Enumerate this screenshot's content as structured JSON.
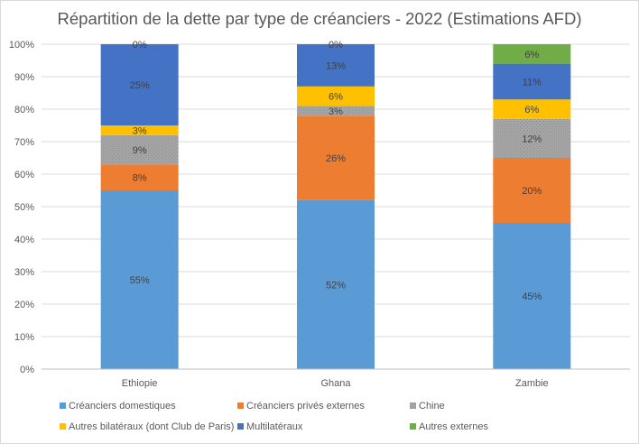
{
  "chart_data": {
    "type": "bar",
    "stacked": true,
    "title": "Répartition de la dette par type de créanciers - 2022 (Estimations AFD)",
    "xlabel": "",
    "ylabel": "",
    "ylim": [
      0,
      100
    ],
    "yticks": [
      "0%",
      "10%",
      "20%",
      "30%",
      "40%",
      "50%",
      "60%",
      "70%",
      "80%",
      "90%",
      "100%"
    ],
    "grid": true,
    "legend_position": "bottom",
    "categories": [
      "Ethiopie",
      "Ghana",
      "Zambie"
    ],
    "series": [
      {
        "name": "Créanciers domestiques",
        "color": "#5b9bd5",
        "values": [
          55,
          52,
          45
        ],
        "labels": [
          "55%",
          "52%",
          "45%"
        ]
      },
      {
        "name": "Créanciers privés externes",
        "color": "#ed7d31",
        "values": [
          8,
          26,
          20
        ],
        "labels": [
          "8%",
          "26%",
          "20%"
        ]
      },
      {
        "name": "Chine",
        "color": "#a5a5a5",
        "values": [
          9,
          3,
          12
        ],
        "labels": [
          "9%",
          "3%",
          "12%"
        ]
      },
      {
        "name": "Autres bilatéraux (dont Club de Paris)",
        "color": "#ffc000",
        "values": [
          3,
          6,
          6
        ],
        "labels": [
          "3%",
          "6%",
          "6%"
        ]
      },
      {
        "name": "Multilatéraux",
        "color": "#4472c4",
        "values": [
          25,
          13,
          11
        ],
        "labels": [
          "25%",
          "13%",
          "11%"
        ]
      },
      {
        "name": "Autres externes",
        "color": "#70ad47",
        "values": [
          0,
          0,
          6
        ],
        "labels": [
          "0%",
          "0%",
          "6%"
        ]
      }
    ]
  }
}
